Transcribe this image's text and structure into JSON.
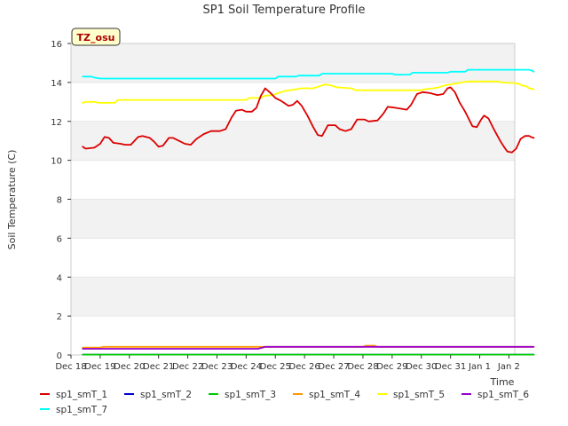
{
  "chart_data": {
    "type": "line",
    "title": "SP1 Soil Temperature Profile",
    "xlabel": "Time",
    "ylabel": "Soil Temperature (C)",
    "ylim": [
      0,
      16
    ],
    "xlim": [
      0,
      15.2
    ],
    "yticks": [
      0,
      2,
      4,
      6,
      8,
      10,
      12,
      14,
      16
    ],
    "xticks": [
      {
        "label": "Dec 18",
        "x": 0
      },
      {
        "label": "Dec 19",
        "x": 1
      },
      {
        "label": "Dec 20",
        "x": 2
      },
      {
        "label": "Dec 21",
        "x": 3
      },
      {
        "label": "Dec 22",
        "x": 4
      },
      {
        "label": "Dec 23",
        "x": 5
      },
      {
        "label": "Dec 24",
        "x": 6
      },
      {
        "label": "Dec 25",
        "x": 7
      },
      {
        "label": "Dec 26",
        "x": 8
      },
      {
        "label": "Dec 27",
        "x": 9
      },
      {
        "label": "Dec 28",
        "x": 10
      },
      {
        "label": "Dec 29",
        "x": 11
      },
      {
        "label": "Dec 30",
        "x": 12
      },
      {
        "label": "Dec 31",
        "x": 13
      },
      {
        "label": "Jan 1",
        "x": 14
      },
      {
        "label": "Jan 2",
        "x": 15
      }
    ],
    "annotation": "TZ_osu",
    "grid": "horizontal bands",
    "legend_position": "bottom",
    "series": [
      {
        "name": "sp1_smT_1",
        "color": "#dd0000",
        "points": [
          [
            0.4,
            10.7
          ],
          [
            0.5,
            10.6
          ],
          [
            0.8,
            10.65
          ],
          [
            1.0,
            10.85
          ],
          [
            1.15,
            11.2
          ],
          [
            1.3,
            11.15
          ],
          [
            1.45,
            10.9
          ],
          [
            1.7,
            10.85
          ],
          [
            1.85,
            10.8
          ],
          [
            2.05,
            10.8
          ],
          [
            2.3,
            11.2
          ],
          [
            2.45,
            11.25
          ],
          [
            2.7,
            11.15
          ],
          [
            2.85,
            10.95
          ],
          [
            3.0,
            10.7
          ],
          [
            3.15,
            10.75
          ],
          [
            3.35,
            11.15
          ],
          [
            3.5,
            11.15
          ],
          [
            3.7,
            11.0
          ],
          [
            3.9,
            10.85
          ],
          [
            4.1,
            10.8
          ],
          [
            4.3,
            11.1
          ],
          [
            4.55,
            11.35
          ],
          [
            4.8,
            11.5
          ],
          [
            5.1,
            11.5
          ],
          [
            5.3,
            11.6
          ],
          [
            5.5,
            12.2
          ],
          [
            5.65,
            12.55
          ],
          [
            5.85,
            12.6
          ],
          [
            6.0,
            12.5
          ],
          [
            6.2,
            12.5
          ],
          [
            6.35,
            12.7
          ],
          [
            6.5,
            13.3
          ],
          [
            6.65,
            13.7
          ],
          [
            6.8,
            13.5
          ],
          [
            7.0,
            13.2
          ],
          [
            7.2,
            13.05
          ],
          [
            7.45,
            12.8
          ],
          [
            7.6,
            12.85
          ],
          [
            7.75,
            13.05
          ],
          [
            7.9,
            12.8
          ],
          [
            8.1,
            12.3
          ],
          [
            8.3,
            11.7
          ],
          [
            8.45,
            11.3
          ],
          [
            8.6,
            11.25
          ],
          [
            8.8,
            11.8
          ],
          [
            9.05,
            11.8
          ],
          [
            9.2,
            11.6
          ],
          [
            9.4,
            11.5
          ],
          [
            9.6,
            11.6
          ],
          [
            9.8,
            12.1
          ],
          [
            10.05,
            12.1
          ],
          [
            10.2,
            12.0
          ],
          [
            10.5,
            12.05
          ],
          [
            10.7,
            12.4
          ],
          [
            10.85,
            12.75
          ],
          [
            11.1,
            12.7
          ],
          [
            11.3,
            12.65
          ],
          [
            11.5,
            12.6
          ],
          [
            11.65,
            12.85
          ],
          [
            11.85,
            13.4
          ],
          [
            12.05,
            13.5
          ],
          [
            12.3,
            13.45
          ],
          [
            12.55,
            13.35
          ],
          [
            12.75,
            13.4
          ],
          [
            12.9,
            13.7
          ],
          [
            13.0,
            13.75
          ],
          [
            13.15,
            13.5
          ],
          [
            13.3,
            13.0
          ],
          [
            13.5,
            12.5
          ],
          [
            13.75,
            11.75
          ],
          [
            13.9,
            11.7
          ],
          [
            14.05,
            12.1
          ],
          [
            14.15,
            12.3
          ],
          [
            14.3,
            12.15
          ],
          [
            14.5,
            11.55
          ],
          [
            14.7,
            11.0
          ],
          [
            14.85,
            10.65
          ],
          [
            14.95,
            10.45
          ],
          [
            15.1,
            10.4
          ],
          [
            15.25,
            10.6
          ],
          [
            15.4,
            11.1
          ],
          [
            15.55,
            11.25
          ],
          [
            15.7,
            11.25
          ],
          [
            15.75,
            11.2
          ],
          [
            15.85,
            11.15
          ]
        ]
      },
      {
        "name": "sp1_smT_2",
        "color": "#0000cc",
        "points": [
          [
            0.4,
            0.02
          ],
          [
            15.85,
            0.02
          ]
        ]
      },
      {
        "name": "sp1_smT_3",
        "color": "#00cc00",
        "points": [
          [
            0.4,
            0.02
          ],
          [
            15.85,
            0.02
          ]
        ]
      },
      {
        "name": "sp1_smT_4",
        "color": "#ff9900",
        "points": [
          [
            0.4,
            0.38
          ],
          [
            1.0,
            0.38
          ],
          [
            1.1,
            0.42
          ],
          [
            6.4,
            0.42
          ],
          [
            6.5,
            0.42
          ],
          [
            10.0,
            0.42
          ],
          [
            10.1,
            0.48
          ],
          [
            10.4,
            0.48
          ],
          [
            10.5,
            0.42
          ],
          [
            15.85,
            0.42
          ]
        ]
      },
      {
        "name": "sp1_smT_5",
        "color": "#ffff00",
        "points": [
          [
            0.4,
            12.95
          ],
          [
            0.5,
            13.0
          ],
          [
            0.8,
            13.0
          ],
          [
            0.95,
            12.95
          ],
          [
            1.5,
            12.95
          ],
          [
            1.6,
            13.1
          ],
          [
            3.5,
            13.1
          ],
          [
            6.0,
            13.1
          ],
          [
            6.1,
            13.2
          ],
          [
            6.5,
            13.2
          ],
          [
            6.6,
            13.3
          ],
          [
            6.9,
            13.35
          ],
          [
            7.1,
            13.45
          ],
          [
            7.3,
            13.55
          ],
          [
            7.5,
            13.6
          ],
          [
            7.7,
            13.65
          ],
          [
            7.9,
            13.7
          ],
          [
            8.3,
            13.7
          ],
          [
            8.5,
            13.8
          ],
          [
            8.7,
            13.9
          ],
          [
            8.9,
            13.85
          ],
          [
            9.1,
            13.75
          ],
          [
            9.6,
            13.7
          ],
          [
            9.75,
            13.6
          ],
          [
            12.0,
            13.6
          ],
          [
            12.1,
            13.65
          ],
          [
            12.4,
            13.7
          ],
          [
            12.6,
            13.75
          ],
          [
            12.8,
            13.85
          ],
          [
            13.0,
            13.9
          ],
          [
            13.2,
            13.95
          ],
          [
            13.4,
            14.0
          ],
          [
            13.6,
            14.05
          ],
          [
            14.6,
            14.05
          ],
          [
            14.75,
            14.0
          ],
          [
            15.3,
            13.95
          ],
          [
            15.45,
            13.85
          ],
          [
            15.6,
            13.8
          ],
          [
            15.7,
            13.7
          ],
          [
            15.85,
            13.65
          ]
        ]
      },
      {
        "name": "sp1_smT_6",
        "color": "#9900cc",
        "points": [
          [
            0.4,
            0.32
          ],
          [
            6.4,
            0.32
          ],
          [
            6.55,
            0.38
          ],
          [
            6.65,
            0.42
          ],
          [
            15.85,
            0.42
          ]
        ]
      },
      {
        "name": "sp1_smT_7",
        "color": "#00ffff",
        "points": [
          [
            0.4,
            14.3
          ],
          [
            0.7,
            14.3
          ],
          [
            0.8,
            14.25
          ],
          [
            1.0,
            14.2
          ],
          [
            7.0,
            14.2
          ],
          [
            7.1,
            14.3
          ],
          [
            7.7,
            14.3
          ],
          [
            7.8,
            14.35
          ],
          [
            8.5,
            14.35
          ],
          [
            8.6,
            14.45
          ],
          [
            11.0,
            14.45
          ],
          [
            11.1,
            14.4
          ],
          [
            11.6,
            14.4
          ],
          [
            11.7,
            14.5
          ],
          [
            12.9,
            14.5
          ],
          [
            13.0,
            14.55
          ],
          [
            13.5,
            14.55
          ],
          [
            13.6,
            14.65
          ],
          [
            15.7,
            14.65
          ],
          [
            15.8,
            14.6
          ],
          [
            15.85,
            14.55
          ]
        ]
      }
    ]
  }
}
